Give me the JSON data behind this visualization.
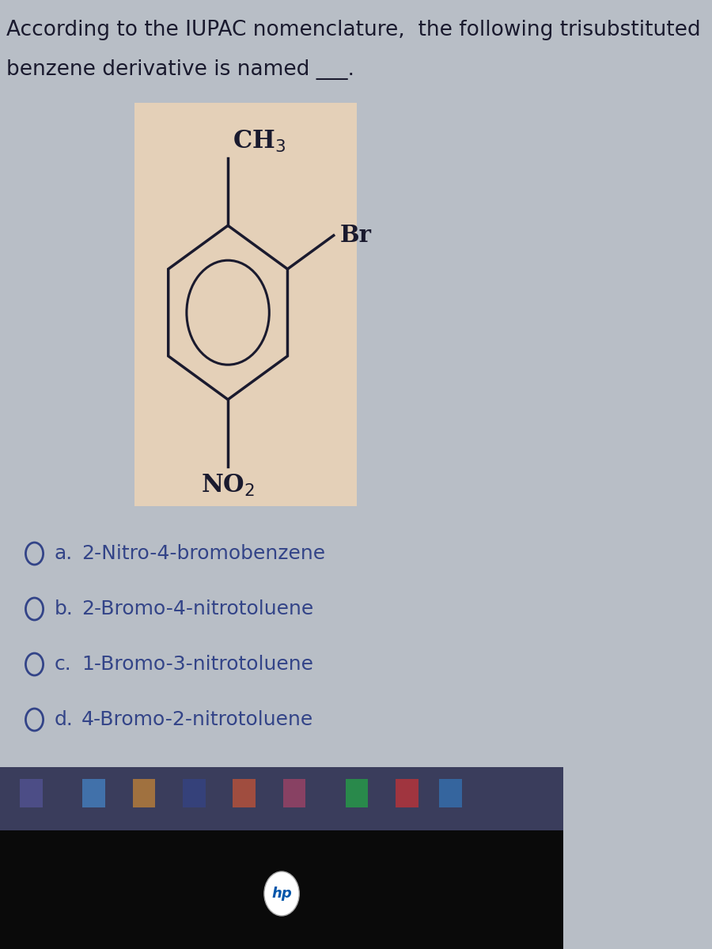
{
  "question_text_line1": "According to the IUPAC nomenclature,  the following trisubstituted",
  "question_text_line2": "benzene derivative is named ___.",
  "ch3_label": "CH$_3$",
  "no2_label": "NO$_2$",
  "br_label": "Br",
  "options": [
    {
      "letter": "a.",
      "text": "2-Nitro-4-bromobenzene"
    },
    {
      "letter": "b.",
      "text": "2-Bromo-4-nitrotoluene"
    },
    {
      "letter": "c.",
      "text": "1-Bromo-3-nitrotoluene"
    },
    {
      "letter": "d.",
      "text": "4-Bromo-2-nitrotoluene"
    }
  ],
  "bg_color": "#b8bec6",
  "molecule_bg": "#e4d0b8",
  "line_color": "#1a1a2e",
  "text_color": "#1a1a2e",
  "option_text_color": "#334488",
  "question_fontsize": 19,
  "option_fontsize": 18,
  "taskbar_color": "#3a3d5c",
  "taskbar_bottom_color": "#111111"
}
